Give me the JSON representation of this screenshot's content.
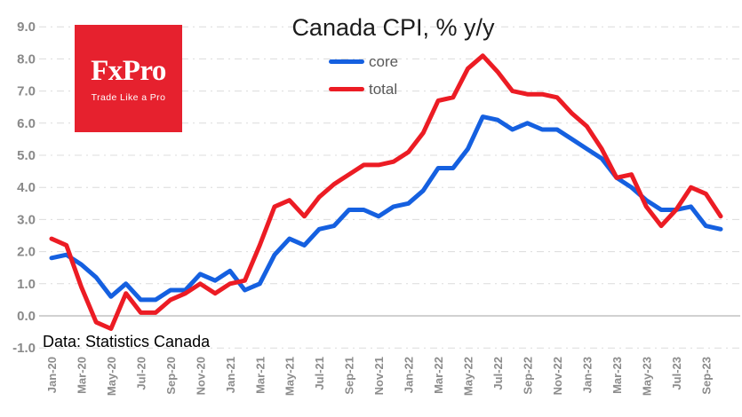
{
  "title": "Canada CPI, % y/y",
  "annotation": "Data: Statistics Canada",
  "logo": {
    "brand": "FxPro",
    "tagline": "Trade Like a Pro",
    "bg_color": "#e6212e"
  },
  "legend": [
    {
      "label": "core",
      "color": "#1560e0"
    },
    {
      "label": "total",
      "color": "#ec1c24"
    }
  ],
  "colors": {
    "core_line": "#1560e0",
    "total_line": "#ec1c24",
    "gridline": "#dcdcdc",
    "zero_line": "#c2c2c2",
    "axis_text": "#8c8c8c",
    "legend_text": "#595959",
    "title_text": "#1c1c1c",
    "background": "#ffffff"
  },
  "chart_data": {
    "type": "line",
    "title": "Canada CPI, % y/y",
    "xlabel": "",
    "ylabel": "",
    "ylim": [
      -1.0,
      9.0
    ],
    "ytick_step": 1.0,
    "y_tick_labels": [
      "9.0",
      "8.0",
      "7.0",
      "6.0",
      "5.0",
      "4.0",
      "3.0",
      "2.0",
      "1.0",
      "0.0",
      "-1.0"
    ],
    "grid": "horizontal-dashed",
    "legend_position": "top-center",
    "x_tick_every": 2,
    "categories": [
      "Jan-20",
      "Feb-20",
      "Mar-20",
      "Apr-20",
      "May-20",
      "Jun-20",
      "Jul-20",
      "Aug-20",
      "Sep-20",
      "Oct-20",
      "Nov-20",
      "Dec-20",
      "Jan-21",
      "Feb-21",
      "Mar-21",
      "Apr-21",
      "May-21",
      "Jun-21",
      "Jul-21",
      "Aug-21",
      "Sep-21",
      "Oct-21",
      "Nov-21",
      "Dec-21",
      "Jan-22",
      "Feb-22",
      "Mar-22",
      "Apr-22",
      "May-22",
      "Jun-22",
      "Jul-22",
      "Aug-22",
      "Sep-22",
      "Oct-22",
      "Nov-22",
      "Dec-22",
      "Jan-23",
      "Feb-23",
      "Mar-23",
      "Apr-23",
      "May-23",
      "Jun-23",
      "Jul-23",
      "Aug-23",
      "Sep-23",
      "Oct-23"
    ],
    "series": [
      {
        "name": "core",
        "color": "#1560e0",
        "values": [
          1.8,
          1.9,
          1.6,
          1.2,
          0.6,
          1.0,
          0.5,
          0.5,
          0.8,
          0.8,
          1.3,
          1.1,
          1.4,
          0.8,
          1.0,
          1.9,
          2.4,
          2.2,
          2.7,
          2.8,
          3.3,
          3.3,
          3.1,
          3.4,
          3.5,
          3.9,
          4.6,
          4.6,
          5.2,
          6.2,
          6.1,
          5.8,
          6.0,
          5.8,
          5.8,
          5.5,
          5.2,
          4.9,
          4.3,
          4.0,
          3.6,
          3.3,
          3.3,
          3.4,
          2.8,
          2.7
        ]
      },
      {
        "name": "total",
        "color": "#ec1c24",
        "values": [
          2.4,
          2.2,
          0.9,
          -0.2,
          -0.4,
          0.7,
          0.1,
          0.1,
          0.5,
          0.7,
          1.0,
          0.7,
          1.0,
          1.1,
          2.2,
          3.4,
          3.6,
          3.1,
          3.7,
          4.1,
          4.4,
          4.7,
          4.7,
          4.8,
          5.1,
          5.7,
          6.7,
          6.8,
          7.7,
          8.1,
          7.6,
          7.0,
          6.9,
          6.9,
          6.8,
          6.3,
          5.9,
          5.2,
          4.3,
          4.4,
          3.4,
          2.8,
          3.3,
          4.0,
          3.8,
          3.1
        ]
      }
    ]
  }
}
